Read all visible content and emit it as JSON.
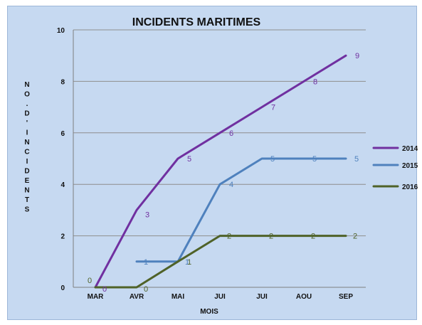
{
  "chart_data": {
    "type": "line",
    "title": "INCIDENTS MARITIMES",
    "xlabel": "MOIS",
    "ylabel": "NO. D'INCIDENTS",
    "categories": [
      "MAR",
      "AVR",
      "MAI",
      "JUI",
      "JUI",
      "AOU",
      "SEP"
    ],
    "ylim": [
      0,
      10
    ],
    "yticks": [
      0,
      2,
      4,
      6,
      8,
      10
    ],
    "grid": true,
    "legend": "right",
    "series": [
      {
        "name": "2014",
        "color": "#7030a0",
        "values": [
          0,
          3,
          5,
          6,
          7,
          8,
          9
        ]
      },
      {
        "name": "2015",
        "color": "#4f81bd",
        "values": [
          null,
          1,
          1,
          4,
          5,
          5,
          5
        ]
      },
      {
        "name": "2016",
        "color": "#4f6228",
        "values": [
          0,
          0,
          1,
          2,
          2,
          2,
          2
        ]
      }
    ]
  }
}
